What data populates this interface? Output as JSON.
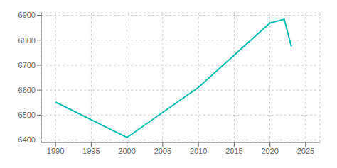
{
  "chart_data": {
    "type": "line",
    "x": [
      1990,
      2000,
      2010,
      2020,
      2022,
      2023
    ],
    "values": [
      6552,
      6410,
      6611,
      6869,
      6884,
      6775
    ],
    "color": "#00bdb0",
    "xlim": [
      1988,
      2027
    ],
    "ylim": [
      6390,
      6910
    ],
    "xticks": [
      1990,
      1995,
      2000,
      2005,
      2010,
      2015,
      2020,
      2025
    ],
    "yticks": [
      6400,
      6500,
      6600,
      6700,
      6800,
      6900
    ],
    "grid": true
  }
}
